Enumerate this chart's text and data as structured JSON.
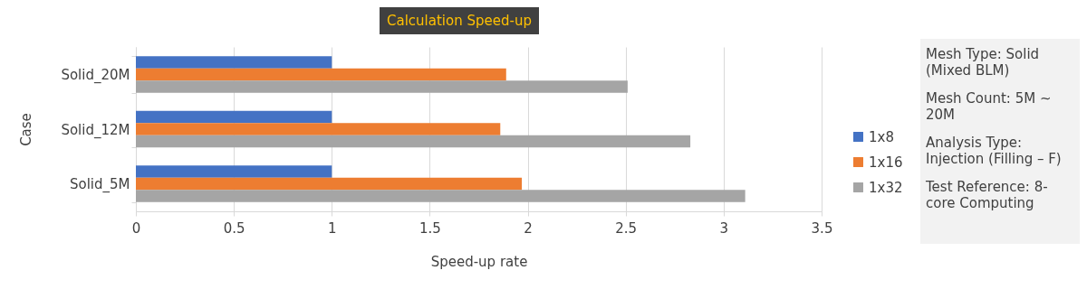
{
  "chart_data": {
    "type": "bar",
    "orientation": "horizontal",
    "title": "Calculation Speed-up",
    "xlabel": "Speed-up rate",
    "ylabel": "Case",
    "categories": [
      "Solid_20M",
      "Solid_12M",
      "Solid_5M"
    ],
    "series": [
      {
        "name": "1x8",
        "color": "#4472c4",
        "values": [
          1,
          1,
          1
        ]
      },
      {
        "name": "1x16",
        "color": "#ed7d31",
        "values": [
          1.89,
          1.86,
          1.97
        ]
      },
      {
        "name": "1x32",
        "color": "#a5a5a5",
        "values": [
          2.51,
          2.83,
          3.11
        ]
      }
    ],
    "xlim": [
      0,
      3.5
    ],
    "xticks": [
      0,
      0.5,
      1,
      1.5,
      2,
      2.5,
      3,
      3.5
    ],
    "grid": "x",
    "legend": "right",
    "annotations": [
      "Mesh Type: Solid (Mixed BLM)",
      "Mesh Count: 5M ~ 20M",
      "Analysis Type: Injection (Filling – F)",
      "Test Reference: 8-core Computing"
    ]
  }
}
